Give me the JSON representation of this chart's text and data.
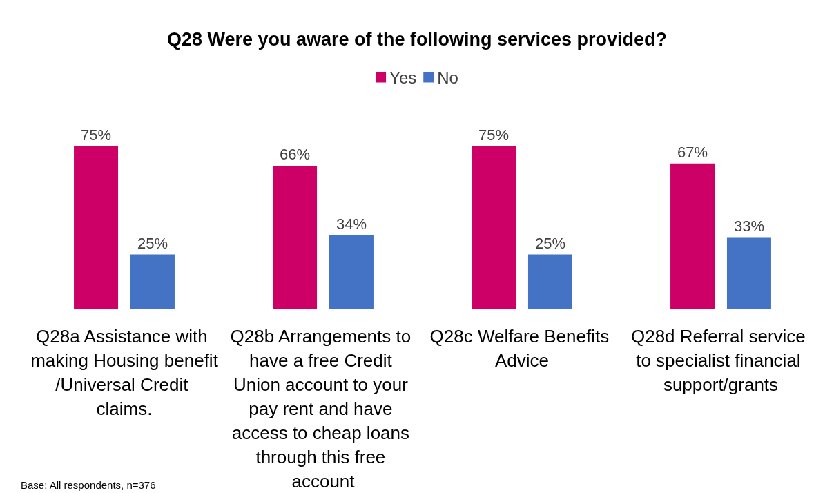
{
  "chart_data": {
    "type": "bar",
    "title": "Q28 Were you aware of the following services provided?",
    "categories": [
      "Q28a Assistance with making Housing benefit/Universal Credit claims.",
      "Q28b Arrangements to have a free Credit Union account to your pay rent and have access to cheap loans through this free account",
      "Q28c Welfare Benefits Advice",
      "Q28d Referral service to specialist financial support/grants"
    ],
    "series": [
      {
        "name": "Yes",
        "color": "#cc0066",
        "values": [
          75,
          66,
          75,
          67
        ],
        "value_labels": [
          "75%",
          "66%",
          "75%",
          "67%"
        ]
      },
      {
        "name": "No",
        "color": "#4472c4",
        "values": [
          25,
          34,
          25,
          33
        ],
        "value_labels": [
          "25%",
          "34%",
          "25%",
          "33%"
        ]
      }
    ],
    "legend": "top",
    "annotations": [
      "Base: All respondents, n=376"
    ]
  }
}
